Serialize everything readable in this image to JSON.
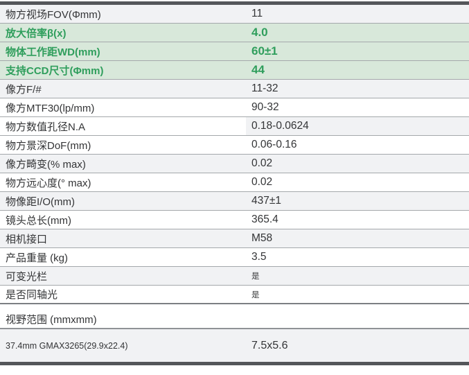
{
  "colors": {
    "accent_green_text": "#2f9e5c",
    "accent_green_bg": "#d8e8da",
    "alt_row_bg": "#f1f2f4",
    "row_divider": "#a4a8ab",
    "frame_bar": "#54565a",
    "text": "#333436"
  },
  "spec_table": {
    "rows": [
      {
        "label": "物方视场FOV(Φmm)",
        "value": "11"
      },
      {
        "label": "放大倍率β(x)",
        "value": "4.0"
      },
      {
        "label": "物体工作距WD(mm)",
        "value": "60±1"
      },
      {
        "label": "支持CCD尺寸(Φmm)",
        "value": "44"
      },
      {
        "label": "像方F/#",
        "value": "11-32"
      },
      {
        "label": "像方MTF30(lp/mm)",
        "value": "90-32"
      },
      {
        "label": "物方数值孔径N.A",
        "value": "0.18-0.0624"
      },
      {
        "label": "物方景深DoF(mm)",
        "value": "0.06-0.16"
      },
      {
        "label": "像方畸变(% max)",
        "value": "0.02"
      },
      {
        "label": "物方远心度(° max)",
        "value": "0.02"
      },
      {
        "label": "物像距I/O(mm)",
        "value": "437±1"
      },
      {
        "label": "镜头总长(mm)",
        "value": "365.4"
      },
      {
        "label": "相机接口",
        "value": "M58"
      },
      {
        "label": "产品重量 (kg)",
        "value": "3.5"
      },
      {
        "label": "可变光栏",
        "value": "是"
      },
      {
        "label": "是否同轴光",
        "value": "是"
      }
    ]
  },
  "fov_section": {
    "title": "视野范围 (mmxmm)",
    "row": {
      "label": "37.4mm GMAX3265(29.9x22.4)",
      "value": "7.5x5.6"
    }
  }
}
